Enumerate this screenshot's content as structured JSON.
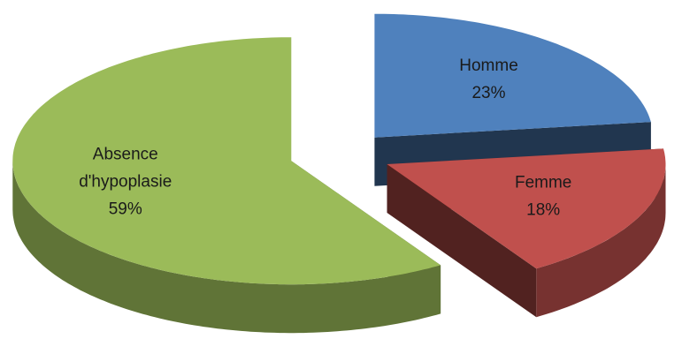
{
  "chart_data": {
    "type": "pie",
    "categories": [
      "Homme",
      "Femme",
      "Absence d'hypoplasie"
    ],
    "values": [
      23,
      18,
      59
    ],
    "value_labels": [
      "23%",
      "18%",
      "59%"
    ],
    "colors": [
      "#4f81bd",
      "#c0504d",
      "#9bbb59"
    ],
    "three_d": true,
    "exploded": true
  }
}
